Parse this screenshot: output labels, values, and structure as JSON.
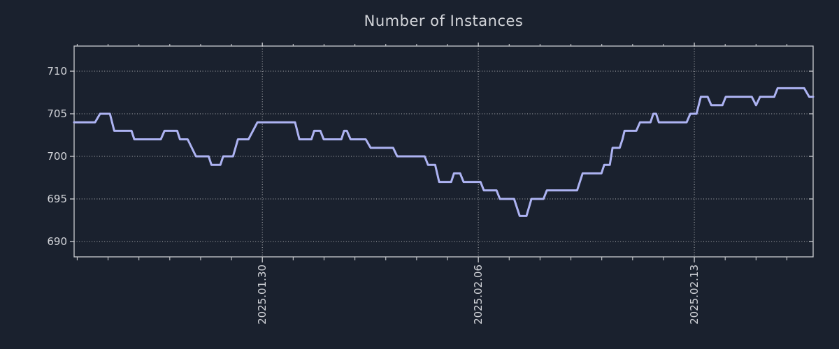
{
  "title": "Number of Instances",
  "colors": {
    "background": "#1a212e",
    "line": "#adb3f2",
    "grid": "#c5c6c8",
    "spine": "#caccd0",
    "text": "#d3d5da"
  },
  "chart_data": {
    "type": "line",
    "title": "Number of Instances",
    "xlabel": "",
    "ylabel": "",
    "legend": "none",
    "grid": "dotted gridlines at major ticks only, dark background",
    "ylim": [
      688.2,
      712.95
    ],
    "y_ticks": [
      690,
      695,
      700,
      705,
      710
    ],
    "xlim_days": [
      -6.1,
      17.85
    ],
    "x_major_ticks": [
      {
        "day": 0,
        "label": "2025.01.30"
      },
      {
        "day": 7,
        "label": "2025.02.06"
      },
      {
        "day": 14,
        "label": "2025.02.13"
      }
    ],
    "x_minor_tick_every_days": 1,
    "series": [
      {
        "name": "Number of Instances",
        "color": "#adb3f2",
        "points_day_value": [
          [
            -6.1,
            704
          ],
          [
            -5.42,
            704
          ],
          [
            -5.26,
            705
          ],
          [
            -4.94,
            705
          ],
          [
            -4.8,
            703
          ],
          [
            -4.24,
            703
          ],
          [
            -4.15,
            702
          ],
          [
            -3.29,
            702
          ],
          [
            -3.17,
            703
          ],
          [
            -2.76,
            703
          ],
          [
            -2.67,
            702
          ],
          [
            -2.42,
            702
          ],
          [
            -2.15,
            700
          ],
          [
            -1.74,
            700
          ],
          [
            -1.65,
            699
          ],
          [
            -1.36,
            699
          ],
          [
            -1.27,
            700
          ],
          [
            -0.95,
            700
          ],
          [
            -0.79,
            702
          ],
          [
            -0.45,
            702
          ],
          [
            -0.16,
            704
          ],
          [
            1.06,
            704
          ],
          [
            1.2,
            702
          ],
          [
            1.59,
            702
          ],
          [
            1.68,
            703
          ],
          [
            1.88,
            703
          ],
          [
            1.99,
            702
          ],
          [
            2.56,
            702
          ],
          [
            2.65,
            703
          ],
          [
            2.74,
            703
          ],
          [
            2.86,
            702
          ],
          [
            3.35,
            702
          ],
          [
            3.51,
            701
          ],
          [
            4.24,
            701
          ],
          [
            4.37,
            700
          ],
          [
            5.26,
            700
          ],
          [
            5.37,
            699
          ],
          [
            5.6,
            699
          ],
          [
            5.73,
            697
          ],
          [
            6.12,
            697
          ],
          [
            6.21,
            698
          ],
          [
            6.41,
            698
          ],
          [
            6.52,
            697
          ],
          [
            7.07,
            697
          ],
          [
            7.18,
            696
          ],
          [
            7.59,
            696
          ],
          [
            7.7,
            695
          ],
          [
            8.16,
            695
          ],
          [
            8.34,
            693
          ],
          [
            8.56,
            693
          ],
          [
            8.72,
            695
          ],
          [
            9.11,
            695
          ],
          [
            9.22,
            696
          ],
          [
            10.2,
            696
          ],
          [
            10.38,
            698
          ],
          [
            10.99,
            698
          ],
          [
            11.08,
            699
          ],
          [
            11.26,
            699
          ],
          [
            11.35,
            701
          ],
          [
            11.58,
            701
          ],
          [
            11.67,
            702
          ],
          [
            11.74,
            703
          ],
          [
            12.12,
            703
          ],
          [
            12.24,
            704
          ],
          [
            12.58,
            704
          ],
          [
            12.67,
            705
          ],
          [
            12.76,
            705
          ],
          [
            12.85,
            704
          ],
          [
            13.75,
            704
          ],
          [
            13.87,
            705
          ],
          [
            14.07,
            705
          ],
          [
            14.21,
            707
          ],
          [
            14.43,
            707
          ],
          [
            14.55,
            706
          ],
          [
            14.91,
            706
          ],
          [
            15.02,
            707
          ],
          [
            15.86,
            707
          ],
          [
            16.0,
            706
          ],
          [
            16.13,
            707
          ],
          [
            16.59,
            707
          ],
          [
            16.7,
            708
          ],
          [
            17.56,
            708
          ],
          [
            17.72,
            707
          ],
          [
            17.85,
            707
          ]
        ]
      }
    ]
  }
}
